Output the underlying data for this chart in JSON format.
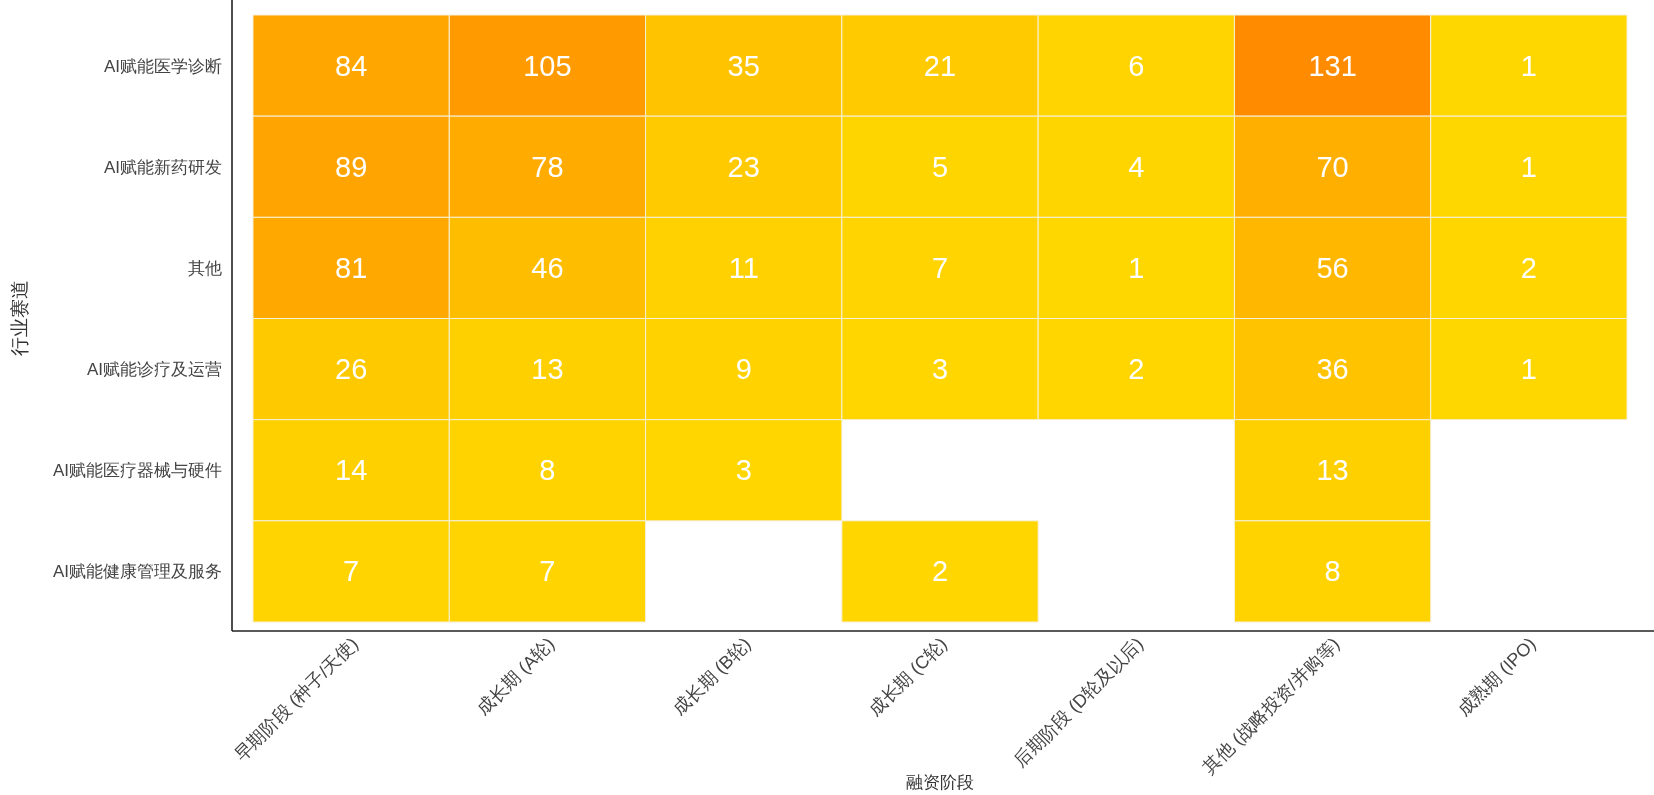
{
  "chart_data": {
    "type": "heatmap",
    "xlabel": "融资阶段",
    "ylabel": "行业赛道",
    "categories": [
      "早期阶段 (种子/天使)",
      "成长期 (A轮)",
      "成长期 (B轮)",
      "成长期 (C轮)",
      "后期阶段 (D轮及以后)",
      "其他 (战略投资/并购等)",
      "成熟期 (IPO)"
    ],
    "y_categories": [
      "AI赋能医学诊断",
      "AI赋能新药研发",
      "其他",
      "AI赋能诊疗及运营",
      "AI赋能医疗器械与硬件",
      "AI赋能健康管理及服务"
    ],
    "colors": [
      "#ffd700",
      "#ff8c00"
    ],
    "data_labels": true,
    "cells": [
      [
        84,
        105,
        35,
        21,
        6,
        131,
        1
      ],
      [
        89,
        78,
        23,
        5,
        4,
        70,
        1
      ],
      [
        81,
        46,
        11,
        7,
        1,
        56,
        2
      ],
      [
        26,
        13,
        9,
        3,
        2,
        36,
        1
      ],
      [
        14,
        8,
        3,
        null,
        null,
        13,
        null
      ],
      [
        7,
        7,
        null,
        2,
        null,
        8,
        null
      ]
    ]
  }
}
